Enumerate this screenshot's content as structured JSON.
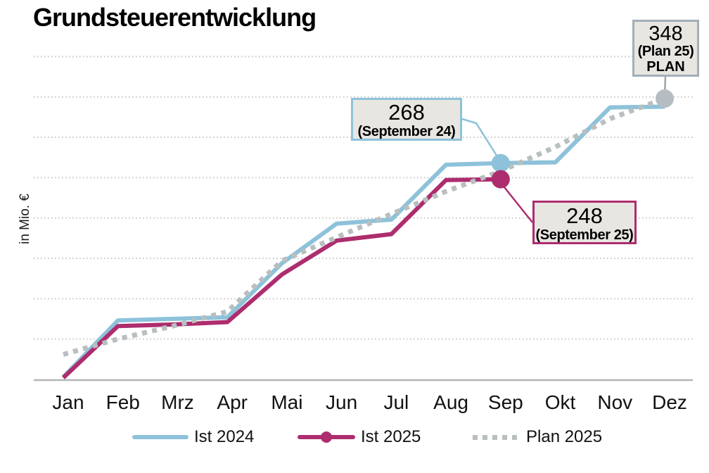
{
  "title": "Grundsteuerentwicklung",
  "colors": {
    "ist2024": "#8dc2da",
    "ist2025": "#ad2d6e",
    "plan2025": "#b9bfc0",
    "plan_marker": "#b5bdc2",
    "gridline": "#c9c9c9",
    "axis": "#b5b5b5",
    "box_bg": "#e8e6e1",
    "box_border_gray": "#a2afb8",
    "tick_text": "#111111"
  },
  "chart_data": {
    "type": "line",
    "title": "Grundsteuerentwicklung",
    "ylabel": "in Mio. €",
    "xlabel": "",
    "ylim": [
      0,
      400
    ],
    "grid": true,
    "grid_step": 50,
    "legend_position": "bottom",
    "categories": [
      "Jan",
      "Feb",
      "Mrz",
      "Apr",
      "Mai",
      "Jun",
      "Jul",
      "Aug",
      "Sep",
      "Okt",
      "Nov",
      "Dez"
    ],
    "series": [
      {
        "name": "Ist 2024",
        "style": "solid",
        "color": "#8dc2da",
        "values": [
          3,
          73,
          75,
          77,
          144,
          193,
          198,
          266,
          268,
          269,
          337,
          338
        ]
      },
      {
        "name": "Ist 2025",
        "style": "solid",
        "color": "#ad2d6e",
        "values": [
          2,
          66,
          68,
          71,
          130,
          172,
          180,
          247,
          248
        ]
      },
      {
        "name": "Plan 2025",
        "style": "dotted",
        "color": "#b9bfc0",
        "values": [
          31,
          50,
          66,
          84,
          147,
          176,
          205,
          233,
          258,
          288,
          323,
          348
        ]
      }
    ],
    "highlighted_points": [
      {
        "series": "Ist 2024",
        "category": "Sep",
        "value": 268,
        "marker_color": "#8dc2da"
      },
      {
        "series": "Ist 2025",
        "category": "Sep",
        "value": 248,
        "marker_color": "#ad2d6e"
      },
      {
        "series": "Plan 2025",
        "category": "Dez",
        "value": 348,
        "marker_color": "#b5bdc2"
      }
    ]
  },
  "annotations": {
    "sep24": {
      "value": "268",
      "caption": "(September 24)"
    },
    "sep25": {
      "value": "248",
      "caption": "(September 25)"
    },
    "plan_dez": {
      "value": "348",
      "caption": "(Plan 25)",
      "tag": "PLAN"
    }
  }
}
